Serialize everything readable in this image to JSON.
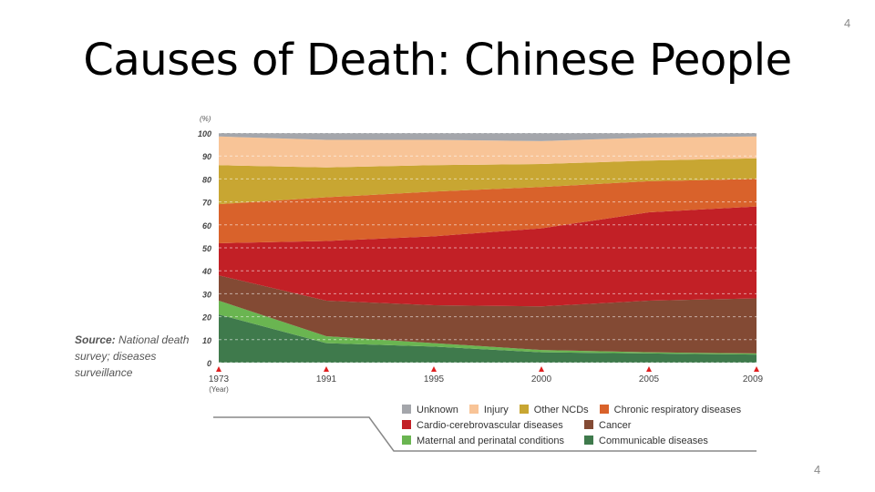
{
  "slide": {
    "title": "Causes of Death: Chinese People",
    "page_number_top": "4",
    "page_number_bottom": "4"
  },
  "source": {
    "label": "Source:",
    "text": "National death survey; diseases surveillance"
  },
  "chart_data": {
    "type": "area",
    "stacked": true,
    "title": "",
    "ylabel": "(%)",
    "xlabel": "(Year)",
    "x": [
      "1973",
      "1991",
      "1995",
      "2000",
      "2005",
      "2009"
    ],
    "ylim": [
      0,
      100
    ],
    "yticks": [
      0,
      10,
      20,
      30,
      40,
      50,
      60,
      70,
      80,
      90,
      100
    ],
    "grid": true,
    "legend_placement": "bottom-right",
    "series": [
      {
        "name": "Communicable diseases",
        "color": "#3f7a4c",
        "values": [
          21,
          8.5,
          7,
          4.5,
          4,
          3.5
        ]
      },
      {
        "name": "Maternal and perinatal conditions",
        "color": "#6ab551",
        "values": [
          6,
          3,
          1.5,
          1,
          0.5,
          0.5
        ]
      },
      {
        "name": "Cancer",
        "color": "#834a34",
        "values": [
          11,
          15.5,
          16.5,
          19,
          22.5,
          24
        ]
      },
      {
        "name": "Cardio-cerebrovascular diseases",
        "color": "#c22026",
        "values": [
          14,
          26,
          30,
          34,
          38.5,
          40
        ]
      },
      {
        "name": "Chronic respiratory diseases",
        "color": "#d9622b",
        "values": [
          17,
          19,
          19.5,
          18,
          13.5,
          12
        ]
      },
      {
        "name": "Other NCDs",
        "color": "#c8a632",
        "values": [
          17,
          13,
          11.5,
          10,
          9,
          9
        ]
      },
      {
        "name": "Injury",
        "color": "#f8c497",
        "values": [
          12.5,
          12,
          11,
          10,
          10,
          9.5
        ]
      },
      {
        "name": "Unknown",
        "color": "#a4a6ab",
        "values": [
          1.5,
          3,
          3,
          3.5,
          2,
          1.5
        ]
      }
    ],
    "legend_order": [
      "Unknown",
      "Injury",
      "Other NCDs",
      "Chronic respiratory diseases",
      "Cardio-cerebrovascular diseases",
      "Cancer",
      "Maternal and perinatal conditions",
      "Communicable diseases"
    ]
  }
}
